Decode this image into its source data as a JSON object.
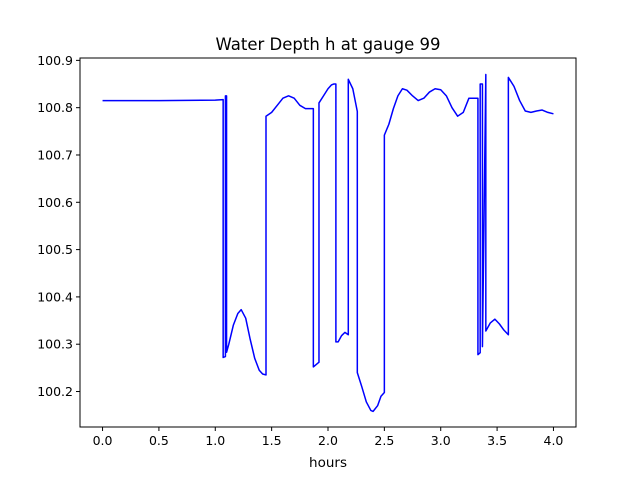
{
  "chart_data": {
    "type": "line",
    "title": "Water Depth h at gauge 99",
    "xlabel": "hours",
    "ylabel": "",
    "xlim": [
      -0.2,
      4.2
    ],
    "ylim": [
      100.125,
      100.905
    ],
    "xticks": [
      0.0,
      0.5,
      1.0,
      1.5,
      2.0,
      2.5,
      3.0,
      3.5,
      4.0
    ],
    "xtick_labels": [
      "0.0",
      "0.5",
      "1.0",
      "1.5",
      "2.0",
      "2.5",
      "3.0",
      "3.5",
      "4.0"
    ],
    "yticks": [
      100.2,
      100.3,
      100.4,
      100.5,
      100.6,
      100.7,
      100.8,
      100.9
    ],
    "ytick_labels": [
      "100.2",
      "100.3",
      "100.4",
      "100.5",
      "100.6",
      "100.7",
      "100.8",
      "100.9"
    ],
    "grid": false,
    "legend": "none",
    "series": [
      {
        "color": "#0000ff",
        "x": [
          0.0,
          0.5,
          1.0,
          1.07,
          1.07,
          1.09,
          1.09,
          1.1,
          1.1,
          1.12,
          1.16,
          1.2,
          1.23,
          1.27,
          1.31,
          1.35,
          1.39,
          1.42,
          1.45,
          1.45,
          1.5,
          1.55,
          1.6,
          1.65,
          1.7,
          1.75,
          1.8,
          1.85,
          1.87,
          1.87,
          1.92,
          1.92,
          1.96,
          2.0,
          2.03,
          2.05,
          2.07,
          2.07,
          2.09,
          2.12,
          2.15,
          2.18,
          2.18,
          2.22,
          2.26,
          2.26,
          2.3,
          2.34,
          2.38,
          2.4,
          2.44,
          2.47,
          2.5,
          2.5,
          2.54,
          2.58,
          2.62,
          2.66,
          2.7,
          2.75,
          2.8,
          2.85,
          2.9,
          2.95,
          3.0,
          3.05,
          3.1,
          3.15,
          3.2,
          3.25,
          3.3,
          3.33,
          3.33,
          3.35,
          3.35,
          3.37,
          3.37,
          3.4,
          3.4,
          3.44,
          3.48,
          3.52,
          3.56,
          3.6,
          3.6,
          3.65,
          3.7,
          3.75,
          3.8,
          3.85,
          3.9,
          3.95,
          4.0
        ],
        "y": [
          100.815,
          100.815,
          100.816,
          100.817,
          100.272,
          100.274,
          100.825,
          100.825,
          100.283,
          100.3,
          100.34,
          100.365,
          100.373,
          100.355,
          100.31,
          100.27,
          100.245,
          100.237,
          100.235,
          100.782,
          100.79,
          100.805,
          100.82,
          100.825,
          100.82,
          100.805,
          100.798,
          100.798,
          100.798,
          100.252,
          100.262,
          100.81,
          100.825,
          100.84,
          100.848,
          100.85,
          100.85,
          100.305,
          100.305,
          100.318,
          100.325,
          100.32,
          100.86,
          100.84,
          100.792,
          100.24,
          100.21,
          100.178,
          100.16,
          100.158,
          100.17,
          100.19,
          100.198,
          100.742,
          100.765,
          100.798,
          100.825,
          100.84,
          100.837,
          100.825,
          100.815,
          100.82,
          100.833,
          100.84,
          100.838,
          100.825,
          100.8,
          100.782,
          100.79,
          100.82,
          100.82,
          100.82,
          100.278,
          100.282,
          100.85,
          100.85,
          100.295,
          100.87,
          100.328,
          100.345,
          100.353,
          100.343,
          100.33,
          100.32,
          100.864,
          100.845,
          100.815,
          100.793,
          100.79,
          100.793,
          100.795,
          100.79,
          100.787
        ]
      }
    ]
  }
}
